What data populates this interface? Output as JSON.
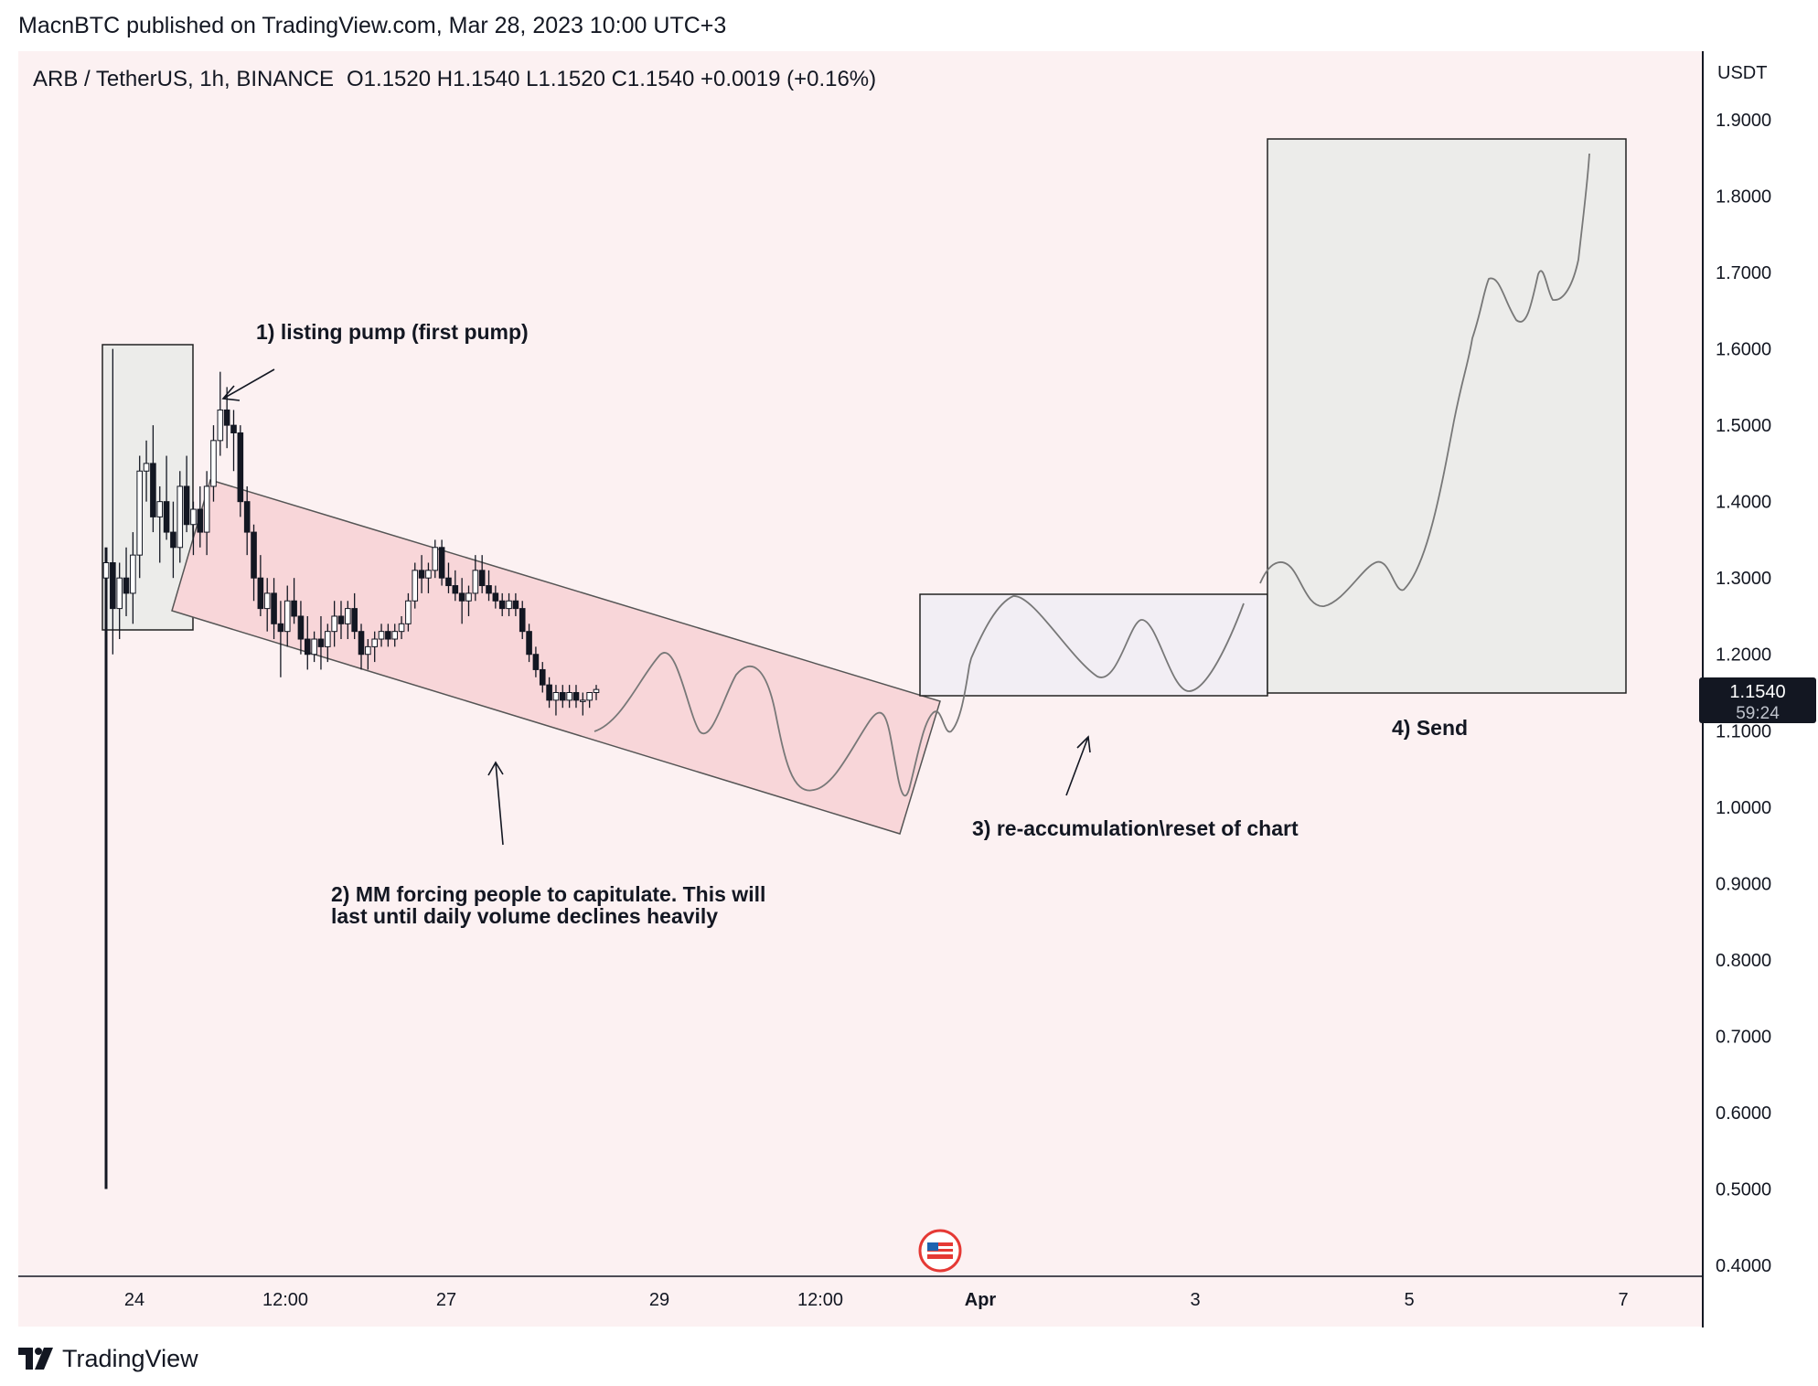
{
  "header": {
    "published": "MacnBTC published on TradingView.com, Mar 28, 2023 10:00 UTC+3"
  },
  "legend": {
    "symbol": "ARB / TetherUS, 1h, BINANCE",
    "ohlc": "O1.1520  H1.1540  L1.1520  C1.1540  +0.0019 (+0.16%)"
  },
  "price_axis": {
    "currency": "USDT",
    "ticks": [
      "1.9000",
      "1.8000",
      "1.7000",
      "1.6000",
      "1.5000",
      "1.4000",
      "1.3000",
      "1.2000",
      "1.1000",
      "1.0000",
      "0.9000",
      "0.8000",
      "0.7000",
      "0.6000",
      "0.5000",
      "0.4000"
    ],
    "current_price": "1.1540",
    "countdown": "59:24"
  },
  "time_axis": {
    "ticks": [
      "24",
      "12:00",
      "27",
      "29",
      "12:00",
      "Apr",
      "3",
      "5",
      "7"
    ]
  },
  "annotations": {
    "a1": "1) listing pump (first pump)",
    "a2_line1": "2) MM forcing people to capitulate. This will",
    "a2_line2": "last until daily volume declines heavily",
    "a3": "3) re-accumulation\\reset of chart",
    "a4": "4) Send"
  },
  "footer": {
    "brand": "TradingView"
  },
  "colors": {
    "chart_bg": "#fcf1f2",
    "channel_fill": "#f8d6d9",
    "box_green": "#ececea",
    "box_purple": "#f2eef4",
    "price_label_bg": "#131722"
  },
  "chart_data": {
    "type": "candlestick",
    "symbol": "ARB / TetherUS",
    "interval": "1h",
    "exchange": "BINANCE",
    "open": 1.152,
    "high": 1.154,
    "low": 1.152,
    "close": 1.154,
    "change": 0.0019,
    "change_pct": 0.16,
    "ylim": [
      0.4,
      1.9
    ],
    "y_unit": "USDT",
    "x_labels": [
      "24",
      "12:00",
      "27",
      "29",
      "12:00",
      "Apr",
      "3",
      "5",
      "7"
    ],
    "candles_ohlc": [
      [
        1.3,
        1.34,
        0.5,
        1.32
      ],
      [
        1.32,
        1.6,
        1.2,
        1.26
      ],
      [
        1.26,
        1.32,
        1.22,
        1.3
      ],
      [
        1.3,
        1.34,
        1.25,
        1.28
      ],
      [
        1.28,
        1.36,
        1.24,
        1.33
      ],
      [
        1.33,
        1.46,
        1.3,
        1.44
      ],
      [
        1.44,
        1.48,
        1.4,
        1.45
      ],
      [
        1.45,
        1.5,
        1.36,
        1.38
      ],
      [
        1.38,
        1.42,
        1.32,
        1.4
      ],
      [
        1.4,
        1.46,
        1.35,
        1.36
      ],
      [
        1.36,
        1.4,
        1.3,
        1.34
      ],
      [
        1.34,
        1.44,
        1.32,
        1.42
      ],
      [
        1.42,
        1.46,
        1.36,
        1.37
      ],
      [
        1.37,
        1.4,
        1.33,
        1.39
      ],
      [
        1.39,
        1.42,
        1.34,
        1.36
      ],
      [
        1.36,
        1.44,
        1.33,
        1.42
      ],
      [
        1.42,
        1.5,
        1.4,
        1.48
      ],
      [
        1.48,
        1.57,
        1.46,
        1.52
      ],
      [
        1.52,
        1.55,
        1.47,
        1.5
      ],
      [
        1.5,
        1.52,
        1.44,
        1.49
      ],
      [
        1.49,
        1.5,
        1.38,
        1.4
      ],
      [
        1.4,
        1.42,
        1.33,
        1.36
      ],
      [
        1.36,
        1.37,
        1.27,
        1.3
      ],
      [
        1.3,
        1.33,
        1.25,
        1.26
      ],
      [
        1.26,
        1.3,
        1.23,
        1.28
      ],
      [
        1.28,
        1.3,
        1.22,
        1.24
      ],
      [
        1.24,
        1.27,
        1.17,
        1.23
      ],
      [
        1.23,
        1.29,
        1.21,
        1.27
      ],
      [
        1.27,
        1.3,
        1.24,
        1.25
      ],
      [
        1.25,
        1.27,
        1.2,
        1.22
      ],
      [
        1.22,
        1.25,
        1.18,
        1.2
      ],
      [
        1.2,
        1.23,
        1.19,
        1.22
      ],
      [
        1.22,
        1.25,
        1.18,
        1.21
      ],
      [
        1.21,
        1.24,
        1.19,
        1.23
      ],
      [
        1.23,
        1.27,
        1.21,
        1.25
      ],
      [
        1.25,
        1.27,
        1.22,
        1.24
      ],
      [
        1.24,
        1.27,
        1.22,
        1.26
      ],
      [
        1.26,
        1.28,
        1.22,
        1.23
      ],
      [
        1.23,
        1.24,
        1.18,
        1.2
      ],
      [
        1.2,
        1.22,
        1.18,
        1.21
      ],
      [
        1.21,
        1.23,
        1.19,
        1.22
      ],
      [
        1.22,
        1.24,
        1.21,
        1.23
      ],
      [
        1.23,
        1.24,
        1.21,
        1.22
      ],
      [
        1.22,
        1.24,
        1.21,
        1.23
      ],
      [
        1.23,
        1.25,
        1.22,
        1.24
      ],
      [
        1.24,
        1.28,
        1.23,
        1.27
      ],
      [
        1.27,
        1.32,
        1.26,
        1.31
      ],
      [
        1.31,
        1.33,
        1.28,
        1.3
      ],
      [
        1.3,
        1.32,
        1.28,
        1.31
      ],
      [
        1.31,
        1.35,
        1.3,
        1.34
      ],
      [
        1.34,
        1.35,
        1.29,
        1.3
      ],
      [
        1.3,
        1.32,
        1.28,
        1.29
      ],
      [
        1.29,
        1.31,
        1.27,
        1.28
      ],
      [
        1.28,
        1.3,
        1.24,
        1.27
      ],
      [
        1.27,
        1.29,
        1.25,
        1.28
      ],
      [
        1.28,
        1.33,
        1.27,
        1.31
      ],
      [
        1.31,
        1.33,
        1.28,
        1.29
      ],
      [
        1.29,
        1.31,
        1.27,
        1.28
      ],
      [
        1.28,
        1.29,
        1.26,
        1.27
      ],
      [
        1.27,
        1.28,
        1.25,
        1.26
      ],
      [
        1.26,
        1.28,
        1.25,
        1.27
      ],
      [
        1.27,
        1.28,
        1.25,
        1.26
      ],
      [
        1.26,
        1.27,
        1.22,
        1.23
      ],
      [
        1.23,
        1.24,
        1.19,
        1.2
      ],
      [
        1.2,
        1.21,
        1.17,
        1.18
      ],
      [
        1.18,
        1.19,
        1.15,
        1.16
      ],
      [
        1.16,
        1.17,
        1.13,
        1.14
      ],
      [
        1.14,
        1.16,
        1.12,
        1.15
      ],
      [
        1.15,
        1.16,
        1.13,
        1.14
      ],
      [
        1.14,
        1.16,
        1.13,
        1.15
      ],
      [
        1.15,
        1.16,
        1.13,
        1.14
      ],
      [
        1.14,
        1.15,
        1.12,
        1.14
      ],
      [
        1.14,
        1.15,
        1.13,
        1.15
      ],
      [
        1.15,
        1.16,
        1.14,
        1.154
      ]
    ],
    "annotations": [
      "1) listing pump (first pump)",
      "2) MM forcing people to capitulate. This will last until daily volume declines heavily",
      "3) re-accumulation\\reset of chart",
      "4) Send"
    ]
  }
}
